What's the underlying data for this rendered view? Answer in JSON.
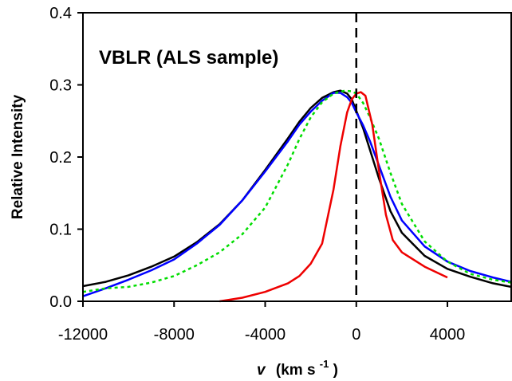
{
  "chart_data": {
    "type": "line",
    "title": "",
    "annotation": "VBLR (ALS sample)",
    "ylabel": "Relative Intensity",
    "xlabel": {
      "var": "v",
      "unit_pre": "(km s",
      "unit_sup": "-1",
      "unit_post": ")"
    },
    "xlim": [
      -12000,
      6800
    ],
    "ylim": [
      0,
      0.4
    ],
    "x_ticks": [
      -12000,
      -8000,
      -4000,
      0,
      4000
    ],
    "x_tick_labels": [
      "-12000",
      "-8000",
      "-4000",
      "0",
      "4000"
    ],
    "y_ticks": [
      0,
      0.1,
      0.2,
      0.3,
      0.4
    ],
    "y_tick_labels": [
      "0.0",
      "0.1",
      "0.2",
      "0.3",
      "0.4"
    ],
    "vline": {
      "x": 0,
      "style": "dashed",
      "color": "#000000"
    },
    "grid": false,
    "legend": "none",
    "series": [
      {
        "color": "#000000",
        "style": "solid",
        "points": [
          [
            -12000,
            0.021
          ],
          [
            -11000,
            0.027
          ],
          [
            -10000,
            0.036
          ],
          [
            -9000,
            0.048
          ],
          [
            -8000,
            0.062
          ],
          [
            -7000,
            0.082
          ],
          [
            -6000,
            0.107
          ],
          [
            -5000,
            0.14
          ],
          [
            -4000,
            0.182
          ],
          [
            -3000,
            0.226
          ],
          [
            -2500,
            0.249
          ],
          [
            -2000,
            0.268
          ],
          [
            -1500,
            0.282
          ],
          [
            -1000,
            0.29
          ],
          [
            -700,
            0.292
          ],
          [
            -400,
            0.288
          ],
          [
            -200,
            0.28
          ],
          [
            0,
            0.264
          ],
          [
            300,
            0.24
          ],
          [
            600,
            0.21
          ],
          [
            1000,
            0.17
          ],
          [
            1500,
            0.125
          ],
          [
            2000,
            0.095
          ],
          [
            3000,
            0.063
          ],
          [
            4000,
            0.045
          ],
          [
            5000,
            0.034
          ],
          [
            6000,
            0.025
          ],
          [
            6800,
            0.02
          ]
        ]
      },
      {
        "color": "#0000ff",
        "style": "solid",
        "points": [
          [
            -12000,
            0.007
          ],
          [
            -11000,
            0.018
          ],
          [
            -10000,
            0.03
          ],
          [
            -9000,
            0.043
          ],
          [
            -8000,
            0.058
          ],
          [
            -7000,
            0.08
          ],
          [
            -6000,
            0.106
          ],
          [
            -5000,
            0.14
          ],
          [
            -4000,
            0.18
          ],
          [
            -3000,
            0.222
          ],
          [
            -2500,
            0.245
          ],
          [
            -2000,
            0.263
          ],
          [
            -1500,
            0.278
          ],
          [
            -1000,
            0.289
          ],
          [
            -700,
            0.289
          ],
          [
            -400,
            0.283
          ],
          [
            -200,
            0.275
          ],
          [
            0,
            0.262
          ],
          [
            300,
            0.244
          ],
          [
            600,
            0.222
          ],
          [
            1000,
            0.188
          ],
          [
            1500,
            0.145
          ],
          [
            2000,
            0.112
          ],
          [
            3000,
            0.076
          ],
          [
            4000,
            0.055
          ],
          [
            5000,
            0.042
          ],
          [
            6000,
            0.033
          ],
          [
            6800,
            0.027
          ]
        ]
      },
      {
        "color": "#00dd00",
        "style": "dotted",
        "points": [
          [
            -12000,
            0.013
          ],
          [
            -11000,
            0.018
          ],
          [
            -10000,
            0.02
          ],
          [
            -9000,
            0.026
          ],
          [
            -8000,
            0.035
          ],
          [
            -7000,
            0.05
          ],
          [
            -6000,
            0.068
          ],
          [
            -5000,
            0.093
          ],
          [
            -4000,
            0.13
          ],
          [
            -3000,
            0.19
          ],
          [
            -2500,
            0.225
          ],
          [
            -2000,
            0.255
          ],
          [
            -1500,
            0.276
          ],
          [
            -1000,
            0.288
          ],
          [
            -500,
            0.292
          ],
          [
            -200,
            0.291
          ],
          [
            0,
            0.288
          ],
          [
            300,
            0.275
          ],
          [
            600,
            0.255
          ],
          [
            1000,
            0.225
          ],
          [
            1500,
            0.178
          ],
          [
            2000,
            0.135
          ],
          [
            3000,
            0.083
          ],
          [
            4000,
            0.055
          ],
          [
            5000,
            0.038
          ],
          [
            6000,
            0.03
          ],
          [
            6800,
            0.026
          ]
        ]
      },
      {
        "color": "#ee0000",
        "style": "solid",
        "points": [
          [
            -6000,
            0.0
          ],
          [
            -5000,
            0.005
          ],
          [
            -4000,
            0.013
          ],
          [
            -3000,
            0.025
          ],
          [
            -2500,
            0.035
          ],
          [
            -2000,
            0.052
          ],
          [
            -1500,
            0.08
          ],
          [
            -1000,
            0.155
          ],
          [
            -700,
            0.215
          ],
          [
            -400,
            0.262
          ],
          [
            -200,
            0.28
          ],
          [
            0,
            0.288
          ],
          [
            200,
            0.29
          ],
          [
            400,
            0.285
          ],
          [
            700,
            0.245
          ],
          [
            1000,
            0.18
          ],
          [
            1300,
            0.12
          ],
          [
            1600,
            0.085
          ],
          [
            2000,
            0.068
          ],
          [
            3000,
            0.048
          ],
          [
            4000,
            0.033
          ]
        ]
      }
    ]
  }
}
